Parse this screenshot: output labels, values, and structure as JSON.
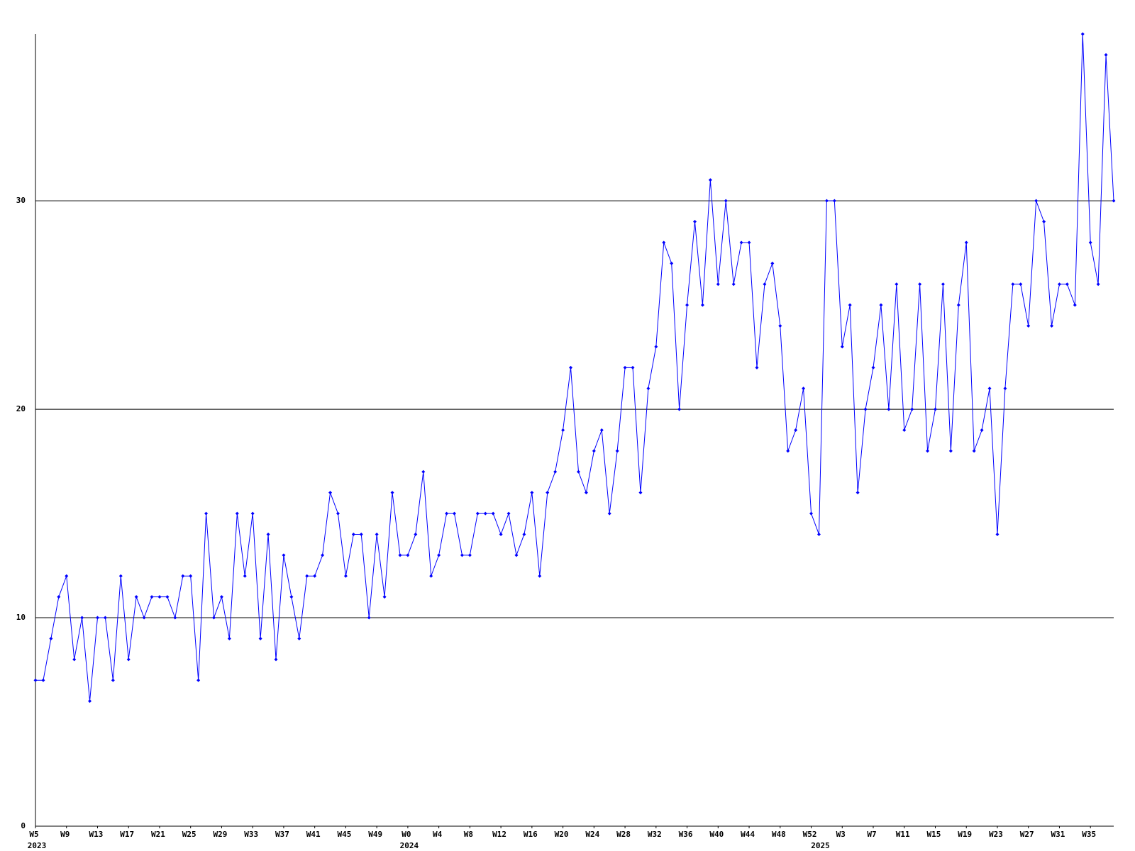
{
  "chart_data": {
    "type": "line",
    "categories": [
      "W5",
      null,
      null,
      null,
      "W9",
      null,
      null,
      null,
      "W13",
      null,
      null,
      null,
      "W17",
      null,
      null,
      null,
      "W21",
      null,
      null,
      null,
      "W25",
      null,
      null,
      null,
      "W29",
      null,
      null,
      null,
      "W33",
      null,
      null,
      null,
      "W37",
      null,
      null,
      null,
      "W41",
      null,
      null,
      null,
      "W45",
      null,
      null,
      null,
      "W49",
      null,
      null,
      null,
      "W0",
      null,
      null,
      null,
      "W4",
      null,
      null,
      null,
      "W8",
      null,
      null,
      null,
      "W12",
      null,
      null,
      null,
      "W16",
      null,
      null,
      null,
      "W20",
      null,
      null,
      null,
      "W24",
      null,
      null,
      null,
      "W28",
      null,
      null,
      null,
      "W32",
      null,
      null,
      null,
      "W36",
      null,
      null,
      null,
      "W40",
      null,
      null,
      null,
      "W44",
      null,
      null,
      null,
      "W48",
      null,
      null,
      null,
      "W52",
      null,
      null,
      null,
      "W3",
      null,
      null,
      null,
      "W7",
      null,
      null,
      null,
      "W11",
      null,
      null,
      null,
      "W15",
      null,
      null,
      null,
      "W19",
      null,
      null,
      null,
      "W23",
      null,
      null,
      null,
      "W27",
      null,
      null,
      null,
      "W31",
      null,
      null,
      null,
      "W35",
      null,
      null,
      null
    ],
    "year_labels": [
      "2023",
      null,
      null,
      null,
      null,
      null,
      null,
      null,
      null,
      null,
      null,
      null,
      null,
      null,
      null,
      null,
      null,
      null,
      null,
      null,
      null,
      null,
      null,
      null,
      null,
      null,
      null,
      null,
      null,
      null,
      null,
      null,
      null,
      null,
      null,
      null,
      null,
      null,
      null,
      null,
      null,
      null,
      null,
      null,
      null,
      null,
      null,
      null,
      "2024",
      null,
      null,
      null,
      null,
      null,
      null,
      null,
      null,
      null,
      null,
      null,
      null,
      null,
      null,
      null,
      null,
      null,
      null,
      null,
      null,
      null,
      null,
      null,
      null,
      null,
      null,
      null,
      null,
      null,
      null,
      null,
      null,
      null,
      null,
      null,
      null,
      null,
      null,
      null,
      null,
      null,
      null,
      null,
      null,
      null,
      null,
      null,
      null,
      null,
      null,
      null,
      null,
      "2025",
      null,
      null,
      null,
      null,
      null,
      null,
      null,
      null,
      null,
      null,
      null,
      null,
      null,
      null,
      null,
      null,
      null,
      null,
      null,
      null,
      null,
      null,
      null,
      null,
      null,
      null,
      null,
      null,
      null,
      null,
      null,
      null,
      null,
      null,
      null,
      null,
      null,
      null
    ],
    "values": [
      7,
      7,
      9,
      11,
      12,
      8,
      10,
      6,
      10,
      10,
      7,
      12,
      8,
      11,
      10,
      11,
      11,
      11,
      10,
      12,
      12,
      7,
      15,
      10,
      11,
      9,
      15,
      12,
      15,
      9,
      14,
      8,
      13,
      11,
      9,
      12,
      12,
      13,
      16,
      15,
      12,
      14,
      14,
      10,
      14,
      11,
      16,
      13,
      13,
      14,
      17,
      12,
      13,
      15,
      15,
      13,
      13,
      15,
      15,
      15,
      14,
      15,
      13,
      14,
      16,
      12,
      16,
      17,
      19,
      22,
      17,
      16,
      18,
      19,
      15,
      18,
      22,
      22,
      16,
      21,
      23,
      28,
      27,
      20,
      25,
      29,
      25,
      31,
      26,
      30,
      26,
      28,
      28,
      22,
      26,
      27,
      24,
      18,
      19,
      21,
      15,
      14,
      30,
      30,
      23,
      25,
      16,
      20,
      22,
      25,
      20,
      26,
      19,
      20,
      26,
      18,
      20,
      26,
      18,
      25,
      28,
      18,
      19,
      21,
      14,
      21,
      26,
      26,
      24,
      30,
      29,
      24,
      26,
      26,
      25,
      38,
      28,
      26,
      37,
      30
    ],
    "color": "#0000ff",
    "ylim": [
      0,
      38
    ],
    "yticks": [
      0,
      10,
      20,
      30
    ],
    "grid": true
  }
}
